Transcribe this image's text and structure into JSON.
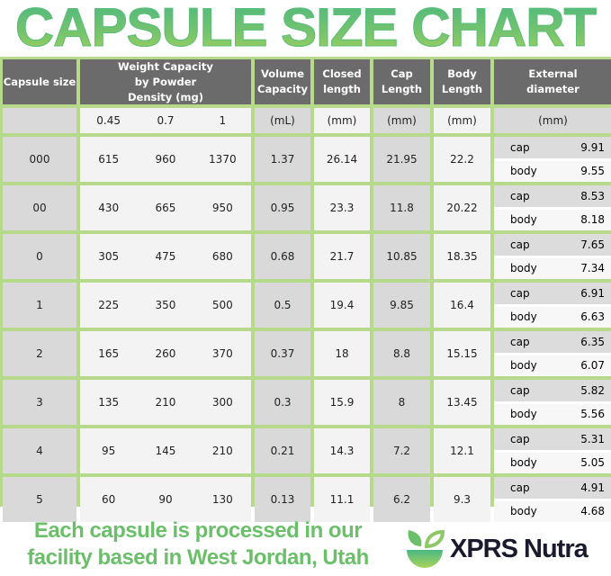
{
  "title": "CAPSULE SIZE CHART",
  "headers": {
    "size": "Capsule size",
    "weight": "Weight Capacity by Powder Density (mg)",
    "volume": "Volume Capacity",
    "closed": "Closed length",
    "cap": "Cap Length",
    "body": "Body Length",
    "ext": "External diameter"
  },
  "units": {
    "densities": [
      "0.45",
      "0.7",
      "1"
    ],
    "volume": "(mL)",
    "closed": "(mm)",
    "cap": "(mm)",
    "body": "(mm)",
    "ext": "(mm)"
  },
  "ext_labels": {
    "cap": "cap",
    "body": "body"
  },
  "rows": [
    {
      "size": "000",
      "w": [
        "615",
        "960",
        "1370"
      ],
      "vol": "1.37",
      "closed": "26.14",
      "cap": "21.95",
      "body": "22.2",
      "ext_cap": "9.91",
      "ext_body": "9.55"
    },
    {
      "size": "00",
      "w": [
        "430",
        "665",
        "950"
      ],
      "vol": "0.95",
      "closed": "23.3",
      "cap": "11.8",
      "body": "20.22",
      "ext_cap": "8.53",
      "ext_body": "8.18"
    },
    {
      "size": "0",
      "w": [
        "305",
        "475",
        "680"
      ],
      "vol": "0.68",
      "closed": "21.7",
      "cap": "10.85",
      "body": "18.35",
      "ext_cap": "7.65",
      "ext_body": "7.34"
    },
    {
      "size": "1",
      "w": [
        "225",
        "350",
        "500"
      ],
      "vol": "0.5",
      "closed": "19.4",
      "cap": "9.85",
      "body": "16.4",
      "ext_cap": "6.91",
      "ext_body": "6.63"
    },
    {
      "size": "2",
      "w": [
        "165",
        "260",
        "370"
      ],
      "vol": "0.37",
      "closed": "18",
      "cap": "8.8",
      "body": "15.15",
      "ext_cap": "6.35",
      "ext_body": "6.07"
    },
    {
      "size": "3",
      "w": [
        "135",
        "210",
        "300"
      ],
      "vol": "0.3",
      "closed": "15.9",
      "cap": "8",
      "body": "13.45",
      "ext_cap": "5.82",
      "ext_body": "5.56"
    },
    {
      "size": "4",
      "w": [
        "95",
        "145",
        "210"
      ],
      "vol": "0.21",
      "closed": "14.3",
      "cap": "7.2",
      "body": "12.1",
      "ext_cap": "5.31",
      "ext_body": "5.05"
    },
    {
      "size": "5",
      "w": [
        "60",
        "90",
        "130"
      ],
      "vol": "0.13",
      "closed": "11.1",
      "cap": "6.2",
      "body": "9.3",
      "ext_cap": "4.91",
      "ext_body": "4.68"
    }
  ],
  "footer": {
    "line1": "Each capsule is processed in our",
    "line2": "facility based in West Jordan, Utah",
    "brand": "XPRS Nutra"
  },
  "colors": {
    "accent": "#6cbf6a",
    "border": "#b6d98c",
    "header": "#6b6b6b"
  }
}
